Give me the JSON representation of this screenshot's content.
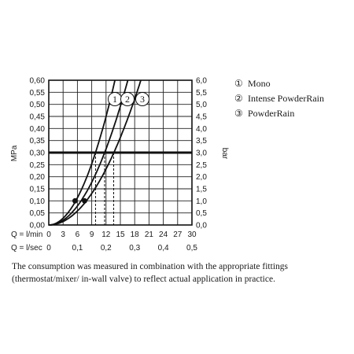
{
  "chart_data": {
    "type": "line",
    "left_axis": {
      "label": "MPa",
      "ticks": [
        "0,00",
        "0,05",
        "0,10",
        "0,15",
        "0,20",
        "0,25",
        "0,30",
        "0,35",
        "0,40",
        "0,45",
        "0,50",
        "0,55",
        "0,60"
      ],
      "range": [
        0,
        0.6
      ]
    },
    "right_axis": {
      "label": "bar",
      "ticks": [
        "0,0",
        "0,5",
        "1,0",
        "1,5",
        "2,0",
        "2,5",
        "3,0",
        "3,5",
        "4,0",
        "4,5",
        "5,0",
        "5,5",
        "6,0"
      ],
      "range": [
        0,
        6
      ]
    },
    "x_axis_lmin": {
      "label": "Q = l/min",
      "ticks": [
        "0",
        "3",
        "6",
        "9",
        "12",
        "15",
        "18",
        "21",
        "24",
        "27",
        "30"
      ],
      "range": [
        0,
        30
      ]
    },
    "x_axis_lsec": {
      "label": "Q = l/sec",
      "ticks": [
        "0",
        "0,1",
        "0,2",
        "0,3",
        "0,4",
        "0,5"
      ],
      "range": [
        0,
        0.5
      ]
    },
    "grid": true,
    "reference_pressure_mpa": 0.3,
    "legend_position": "right",
    "series": [
      {
        "name": "Mono",
        "marker": "1",
        "k": 0.003125,
        "flow_at_reference_lmin": 9.8,
        "marker_point": [
          5.5,
          0.1
        ]
      },
      {
        "name": "Intense PowderRain",
        "marker": "2",
        "k": 0.002188,
        "flow_at_reference_lmin": 11.7,
        "marker_point": [
          7.5,
          0.1
        ]
      },
      {
        "name": "PowderRain",
        "marker": "3",
        "k": 0.001613,
        "flow_at_reference_lmin": 13.6,
        "marker_point": null
      }
    ]
  },
  "legend": [
    {
      "symbol": "①",
      "label": "Mono"
    },
    {
      "symbol": "②",
      "label": "Intense PowderRain"
    },
    {
      "symbol": "③",
      "label": "PowderRain"
    }
  ],
  "note": "The consumption was measured in combination with the appropriate fittings (thermostat/mixer/ in-wall valve) to reflect actual application in practice."
}
